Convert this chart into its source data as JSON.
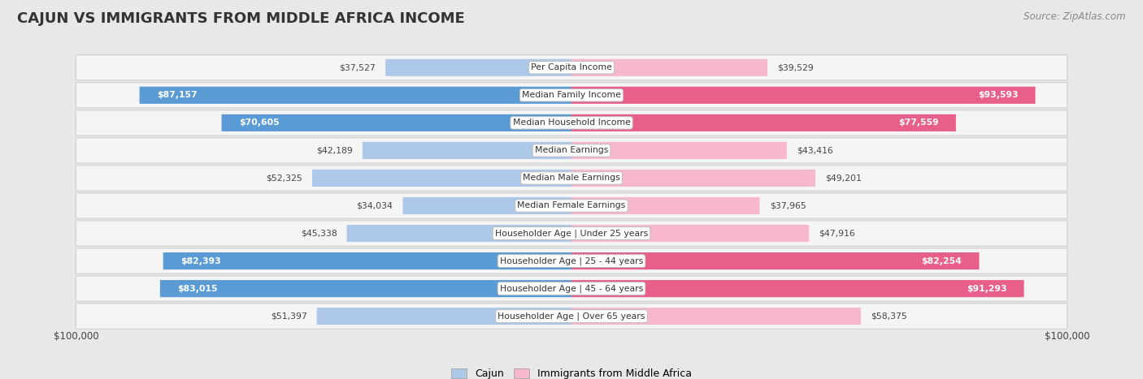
{
  "title": "CAJUN VS IMMIGRANTS FROM MIDDLE AFRICA INCOME",
  "source": "Source: ZipAtlas.com",
  "categories": [
    "Per Capita Income",
    "Median Family Income",
    "Median Household Income",
    "Median Earnings",
    "Median Male Earnings",
    "Median Female Earnings",
    "Householder Age | Under 25 years",
    "Householder Age | 25 - 44 years",
    "Householder Age | 45 - 64 years",
    "Householder Age | Over 65 years"
  ],
  "cajun_values": [
    37527,
    87157,
    70605,
    42189,
    52325,
    34034,
    45338,
    82393,
    83015,
    51397
  ],
  "immigrant_values": [
    39529,
    93593,
    77559,
    43416,
    49201,
    37965,
    47916,
    82254,
    91293,
    58375
  ],
  "cajun_labels": [
    "$37,527",
    "$87,157",
    "$70,605",
    "$42,189",
    "$52,325",
    "$34,034",
    "$45,338",
    "$82,393",
    "$83,015",
    "$51,397"
  ],
  "immigrant_labels": [
    "$39,529",
    "$93,593",
    "$77,559",
    "$43,416",
    "$49,201",
    "$37,965",
    "$47,916",
    "$82,254",
    "$91,293",
    "$58,375"
  ],
  "cajun_color_light": "#adc8e8",
  "cajun_color_dark": "#5b9bd5",
  "immigrant_color_light": "#f7b8cc",
  "immigrant_color_dark": "#e8608a",
  "max_value": 100000,
  "background_color": "#e8e8e8",
  "row_bg": "#f5f5f5",
  "row_border": "#d0d0d0",
  "legend_cajun": "Cajun",
  "legend_immigrant": "Immigrants from Middle Africa",
  "xlabel_left": "$100,000",
  "xlabel_right": "$100,000",
  "inside_label_threshold": 60000
}
